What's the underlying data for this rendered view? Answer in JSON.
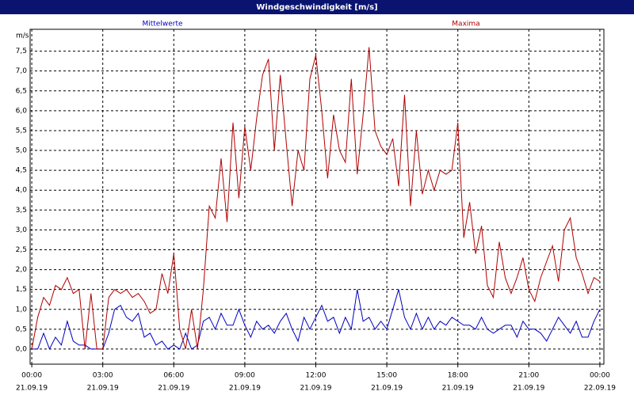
{
  "chart_data": {
    "type": "line",
    "title": "Windgeschwindigkeit [m/s]",
    "y_label": "m/s",
    "x": [
      0,
      0.25,
      0.5,
      0.75,
      1,
      1.25,
      1.5,
      1.75,
      2,
      2.25,
      2.5,
      2.75,
      3,
      3.25,
      3.5,
      3.75,
      4,
      4.25,
      4.5,
      4.75,
      5,
      5.25,
      5.5,
      5.75,
      6,
      6.25,
      6.5,
      6.75,
      7,
      7.25,
      7.5,
      7.75,
      8,
      8.25,
      8.5,
      8.75,
      9,
      9.25,
      9.5,
      9.75,
      10,
      10.25,
      10.5,
      10.75,
      11,
      11.25,
      11.5,
      11.75,
      12,
      12.25,
      12.5,
      12.75,
      13,
      13.25,
      13.5,
      13.75,
      14,
      14.25,
      14.5,
      14.75,
      15,
      15.25,
      15.5,
      15.75,
      16,
      16.25,
      16.5,
      16.75,
      17,
      17.25,
      17.5,
      17.75,
      18,
      18.25,
      18.5,
      18.75,
      19,
      19.25,
      19.5,
      19.75,
      20,
      20.25,
      20.5,
      20.75,
      21,
      21.25,
      21.5,
      21.75,
      22,
      22.25,
      22.5,
      22.75,
      23,
      23.25,
      23.5,
      23.75,
      24
    ],
    "series": [
      {
        "name": "Mittelwerte",
        "color": "#0000c0",
        "values": [
          0.0,
          0.0,
          0.4,
          0.0,
          0.3,
          0.1,
          0.7,
          0.2,
          0.1,
          0.1,
          0.0,
          0.0,
          0.0,
          0.4,
          1.0,
          1.1,
          0.8,
          0.7,
          0.9,
          0.3,
          0.4,
          0.1,
          0.2,
          0.0,
          0.1,
          0.0,
          0.4,
          0.0,
          0.1,
          0.7,
          0.8,
          0.5,
          0.9,
          0.6,
          0.6,
          1.0,
          0.6,
          0.3,
          0.7,
          0.5,
          0.6,
          0.4,
          0.7,
          0.9,
          0.5,
          0.2,
          0.8,
          0.5,
          0.8,
          1.1,
          0.7,
          0.8,
          0.4,
          0.8,
          0.5,
          1.5,
          0.7,
          0.8,
          0.5,
          0.7,
          0.5,
          1.0,
          1.5,
          0.8,
          0.5,
          0.9,
          0.5,
          0.8,
          0.5,
          0.7,
          0.6,
          0.8,
          0.7,
          0.6,
          0.6,
          0.5,
          0.8,
          0.5,
          0.4,
          0.5,
          0.6,
          0.6,
          0.3,
          0.7,
          0.5,
          0.5,
          0.4,
          0.2,
          0.5,
          0.8,
          0.6,
          0.4,
          0.7,
          0.3,
          0.3,
          0.7,
          1.0
        ]
      },
      {
        "name": "Maxima",
        "color": "#b00000",
        "values": [
          0.0,
          0.8,
          1.3,
          1.1,
          1.6,
          1.5,
          1.8,
          1.4,
          1.5,
          0.0,
          1.4,
          0.0,
          0.0,
          1.3,
          1.5,
          1.4,
          1.5,
          1.3,
          1.4,
          1.2,
          0.9,
          1.0,
          1.9,
          1.4,
          2.4,
          0.5,
          0.0,
          1.0,
          0.0,
          1.5,
          3.6,
          3.3,
          4.8,
          3.2,
          5.7,
          3.8,
          5.6,
          4.5,
          5.8,
          6.9,
          7.3,
          5.0,
          6.9,
          5.2,
          3.6,
          5.0,
          4.5,
          6.8,
          7.4,
          6.0,
          4.3,
          5.9,
          5.0,
          4.7,
          6.8,
          4.4,
          5.9,
          7.6,
          5.5,
          5.1,
          4.9,
          5.3,
          4.1,
          6.4,
          3.6,
          5.5,
          3.9,
          4.5,
          4.0,
          4.5,
          4.4,
          4.5,
          5.7,
          2.8,
          3.7,
          2.4,
          3.1,
          1.6,
          1.3,
          2.7,
          1.8,
          1.4,
          1.8,
          2.3,
          1.5,
          1.2,
          1.8,
          2.2,
          2.6,
          1.7,
          3.0,
          3.3,
          2.3,
          1.9,
          1.4,
          1.8,
          1.7
        ]
      }
    ],
    "xlim": [
      -0.07,
      24.17
    ],
    "ylim": [
      -0.38,
      8.05
    ],
    "xticks": [
      {
        "value": 0,
        "label": [
          "00:00",
          "21.09.19"
        ]
      },
      {
        "value": 3,
        "label": [
          "03:00",
          "21.09.19"
        ]
      },
      {
        "value": 6,
        "label": [
          "06:00",
          "21.09.19"
        ]
      },
      {
        "value": 9,
        "label": [
          "09:00",
          "21.09.19"
        ]
      },
      {
        "value": 12,
        "label": [
          "12:00",
          "21.09.19"
        ]
      },
      {
        "value": 15,
        "label": [
          "15:00",
          "21.09.19"
        ]
      },
      {
        "value": 18,
        "label": [
          "18:00",
          "21.09.19"
        ]
      },
      {
        "value": 21,
        "label": [
          "21:00",
          "21.09.19"
        ]
      },
      {
        "value": 24,
        "label": [
          "00:00",
          "22.09.19"
        ]
      }
    ],
    "yticks": [
      {
        "value": 0,
        "label": "0,0"
      },
      {
        "value": 0.5,
        "label": "0,5"
      },
      {
        "value": 1,
        "label": "1,0"
      },
      {
        "value": 1.5,
        "label": "1,5"
      },
      {
        "value": 2,
        "label": "2,0"
      },
      {
        "value": 2.5,
        "label": "2,5"
      },
      {
        "value": 3,
        "label": "3,0"
      },
      {
        "value": 3.5,
        "label": "3,5"
      },
      {
        "value": 4,
        "label": "4,0"
      },
      {
        "value": 4.5,
        "label": "4,5"
      },
      {
        "value": 5,
        "label": "5,0"
      },
      {
        "value": 5.5,
        "label": "5,5"
      },
      {
        "value": 6,
        "label": "6,0"
      },
      {
        "value": 6.5,
        "label": "6,5"
      },
      {
        "value": 7,
        "label": "7,0"
      },
      {
        "value": 7.5,
        "label": "7,5"
      }
    ],
    "grid": true
  }
}
